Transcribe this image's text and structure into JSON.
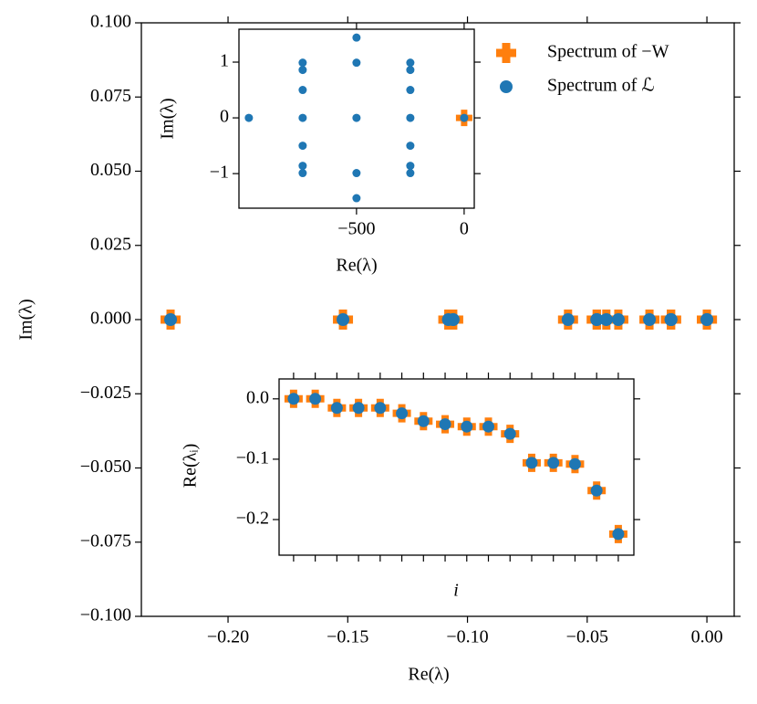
{
  "chart_data": [
    {
      "type": "scatter",
      "xlabel": "Re(λ)",
      "ylabel": "Im(λ)",
      "xlim": [
        -0.2362,
        0.0114
      ],
      "ylim": [
        -0.1,
        0.1
      ],
      "xticks": [
        {
          "value": -0.2,
          "label": "−0.20"
        },
        {
          "value": -0.15,
          "label": "−0.15"
        },
        {
          "value": -0.1,
          "label": "−0.10"
        },
        {
          "value": -0.05,
          "label": "−0.05"
        },
        {
          "value": 0,
          "label": "0.00"
        }
      ],
      "yticks": [
        {
          "value": 0.1,
          "label": "0.100"
        },
        {
          "value": 0.075,
          "label": "0.075"
        },
        {
          "value": 0.05,
          "label": "0.050"
        },
        {
          "value": 0.025,
          "label": "0.025"
        },
        {
          "value": 0,
          "label": "0.000"
        },
        {
          "value": -0.025,
          "label": "−0.025"
        },
        {
          "value": -0.05,
          "label": "−0.050"
        },
        {
          "value": -0.075,
          "label": "−0.075"
        },
        {
          "value": -0.1,
          "label": "−0.100"
        }
      ],
      "legend": "upper right",
      "series": [
        {
          "name": "Spectrum of −W",
          "color": "#ff7f0e",
          "marker": "plus",
          "x": [
            -0.224,
            -0.152,
            -0.108,
            -0.106,
            -0.106,
            -0.058,
            -0.046,
            -0.046,
            -0.042,
            -0.037,
            -0.024,
            -0.015,
            -0.015,
            -0.015,
            0,
            0
          ],
          "values": [
            0,
            0,
            0,
            0,
            0,
            0,
            0,
            0,
            0,
            0,
            0,
            0,
            0,
            0,
            0,
            0
          ]
        },
        {
          "name": "Spectrum of ℒ",
          "color": "#1f77b4",
          "marker": "circle",
          "x": [
            -0.224,
            -0.152,
            -0.108,
            -0.106,
            -0.106,
            -0.058,
            -0.046,
            -0.046,
            -0.042,
            -0.037,
            -0.024,
            -0.015,
            -0.015,
            -0.015,
            0,
            0
          ],
          "values": [
            0,
            0,
            0,
            0,
            0,
            0,
            0,
            0,
            0,
            0,
            0,
            0,
            0,
            0,
            0,
            0
          ]
        }
      ]
    },
    {
      "type": "scatter",
      "xlabel": "Re(λ)",
      "ylabel": "Im(λ)",
      "xlim": [
        -1046,
        47
      ],
      "ylim": [
        -1.62,
        1.59
      ],
      "xticks": [
        {
          "value": -500,
          "label": "−500"
        },
        0
      ],
      "yticks": [
        1,
        0,
        {
          "value": -1,
          "label": "−1"
        }
      ],
      "series": [
        {
          "color": "#ff7f0e",
          "marker": "plus",
          "x": [
            0
          ],
          "values": [
            0
          ]
        },
        {
          "color": "#1f77b4",
          "marker": "circle",
          "x": [
            -1000,
            -750,
            -750,
            -750,
            -750,
            -750,
            -750,
            -750,
            -500,
            -500,
            -500,
            -500,
            -500,
            -250,
            -250,
            -250,
            -250,
            -250,
            -250,
            -250,
            0
          ],
          "values": [
            0,
            0.99,
            0.86,
            0.5,
            0,
            -0.5,
            -0.86,
            -0.99,
            1.44,
            0.99,
            0,
            -0.99,
            -1.44,
            0.99,
            0.86,
            0.5,
            0,
            -0.5,
            -0.86,
            -0.99,
            0
          ]
        }
      ]
    },
    {
      "type": "scatter",
      "xlabel": "i",
      "ylabel": "Re(λᵢ)",
      "xlim": [
        -0.67,
        15.72
      ],
      "ylim": [
        -0.259,
        0.033
      ],
      "xticks": [
        0,
        1,
        2,
        3,
        4,
        5,
        6,
        7,
        8,
        9,
        10,
        11,
        12,
        13,
        14,
        15
      ],
      "yticks": [
        {
          "value": 0,
          "label": "0.0"
        },
        {
          "value": -0.1,
          "label": "−0.1"
        },
        {
          "value": -0.2,
          "label": "−0.2"
        }
      ],
      "series": [
        {
          "color": "#ff7f0e",
          "marker": "plus",
          "x": [
            0,
            1,
            2,
            3,
            4,
            5,
            6,
            7,
            8,
            9,
            10,
            11,
            12,
            13,
            14,
            15
          ],
          "values": [
            0,
            0,
            -0.015,
            -0.015,
            -0.015,
            -0.024,
            -0.037,
            -0.042,
            -0.046,
            -0.046,
            -0.058,
            -0.106,
            -0.106,
            -0.108,
            -0.152,
            -0.224
          ]
        },
        {
          "color": "#1f77b4",
          "marker": "circle",
          "x": [
            0,
            1,
            2,
            3,
            4,
            5,
            6,
            7,
            8,
            9,
            10,
            11,
            12,
            13,
            14,
            15
          ],
          "values": [
            0,
            0,
            -0.015,
            -0.015,
            -0.015,
            -0.024,
            -0.037,
            -0.042,
            -0.046,
            -0.046,
            -0.058,
            -0.106,
            -0.106,
            -0.108,
            -0.152,
            -0.224
          ]
        }
      ]
    }
  ]
}
